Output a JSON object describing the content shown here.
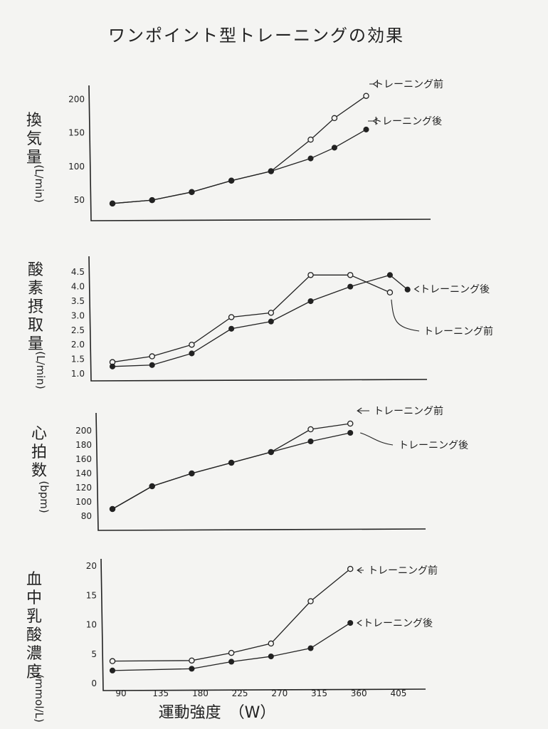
{
  "title": "ワンポイント型トレーニングの効果",
  "xlabel": "運動強度　（W）",
  "chart_data": [
    {
      "type": "line",
      "ylabel": "換気量",
      "unit": "(L/min)",
      "yticks": [
        "50",
        "100",
        "150",
        "200"
      ],
      "ylim": [
        30,
        210
      ],
      "x": [
        90,
        135,
        180,
        225,
        270,
        315,
        360
      ],
      "series": [
        {
          "name": "トレーニング前",
          "marker": "open",
          "x": [
            90,
            135,
            180,
            225,
            270,
            315,
            342,
            378
          ],
          "values": [
            45,
            50,
            62,
            79,
            93,
            140,
            172,
            205
          ]
        },
        {
          "name": "トレーニング後",
          "marker": "filled",
          "x": [
            90,
            135,
            180,
            225,
            270,
            315,
            342,
            378
          ],
          "values": [
            45,
            50,
            62,
            79,
            93,
            112,
            128,
            155
          ]
        }
      ]
    },
    {
      "type": "line",
      "ylabel": "酸素摂取量",
      "unit": "(L/min)",
      "yticks": [
        "1.0",
        "1.5",
        "2.0",
        "2.5",
        "3.0",
        "3.5",
        "4.0",
        "4.5"
      ],
      "ylim": [
        1.0,
        4.8
      ],
      "series": [
        {
          "name": "トレーニング前",
          "marker": "open",
          "x": [
            90,
            135,
            180,
            225,
            270,
            315,
            360,
            405
          ],
          "values": [
            1.4,
            1.6,
            2.0,
            2.95,
            3.1,
            4.4,
            4.4,
            3.8
          ]
        },
        {
          "name": "トレーニング後",
          "marker": "filled",
          "x": [
            90,
            135,
            180,
            225,
            270,
            315,
            360,
            405,
            425
          ],
          "values": [
            1.25,
            1.3,
            1.7,
            2.55,
            2.8,
            3.5,
            4.0,
            4.4,
            3.9
          ]
        }
      ]
    },
    {
      "type": "line",
      "ylabel": "心拍数",
      "unit": "(bpm)",
      "yticks": [
        "80",
        "100",
        "120",
        "140",
        "160",
        "180",
        "200"
      ],
      "ylim": [
        70,
        215
      ],
      "series": [
        {
          "name": "トレーニング前",
          "marker": "open",
          "x": [
            90,
            135,
            180,
            225,
            270,
            315,
            360
          ],
          "values": [
            90,
            122,
            140,
            155,
            170,
            202,
            210
          ]
        },
        {
          "name": "トレーニング後",
          "marker": "filled",
          "x": [
            90,
            135,
            180,
            225,
            270,
            315,
            360
          ],
          "values": [
            90,
            122,
            140,
            155,
            170,
            185,
            197
          ]
        }
      ]
    },
    {
      "type": "line",
      "ylabel": "血中乳酸濃度",
      "unit": "(mmol/L)",
      "yticks": [
        "0",
        "5",
        "10",
        "15",
        "20"
      ],
      "ylim": [
        0,
        20
      ],
      "xticks": [
        "90",
        "135",
        "180",
        "225",
        "270",
        "315",
        "360",
        "405"
      ],
      "series": [
        {
          "name": "トレーニング前",
          "marker": "open",
          "x": [
            90,
            180,
            225,
            270,
            315,
            360
          ],
          "values": [
            3.8,
            3.9,
            5.2,
            6.8,
            14.0,
            19.5
          ]
        },
        {
          "name": "トレーニング後",
          "marker": "filled",
          "x": [
            90,
            180,
            225,
            270,
            315,
            360
          ],
          "values": [
            2.2,
            2.5,
            3.7,
            4.6,
            6.0,
            10.3
          ]
        }
      ]
    }
  ]
}
